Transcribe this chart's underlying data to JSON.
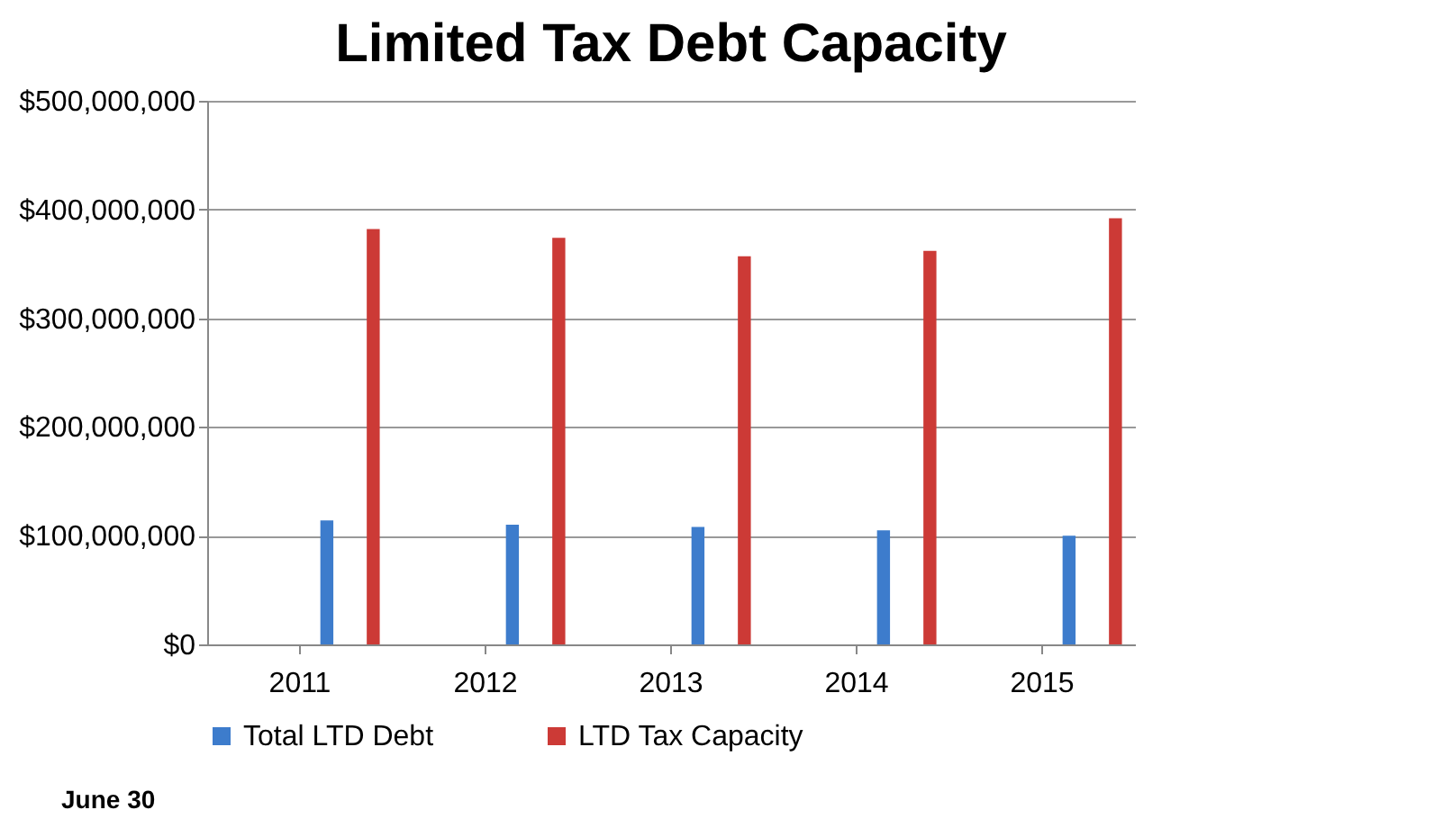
{
  "chart_data": {
    "type": "bar",
    "title": "Limited Tax Debt Capacity",
    "categories": [
      "2011",
      "2012",
      "2013",
      "2014",
      "2015"
    ],
    "series": [
      {
        "name": "Total LTD Debt",
        "color": "#3d7ccc",
        "values": [
          114000000,
          110000000,
          108000000,
          105000000,
          100000000
        ]
      },
      {
        "name": "LTD Tax Capacity",
        "color": "#cc3a36",
        "values": [
          382000000,
          374000000,
          357000000,
          362000000,
          392000000
        ]
      }
    ],
    "ylim": [
      0,
      500000000
    ],
    "yticks": [
      {
        "value": 0,
        "label": "$0"
      },
      {
        "value": 100000000,
        "label": "$100,000,000"
      },
      {
        "value": 200000000,
        "label": "$200,000,000"
      },
      {
        "value": 300000000,
        "label": "$300,000,000"
      },
      {
        "value": 400000000,
        "label": "$400,000,000"
      },
      {
        "value": 500000000,
        "label": "$500,000,000"
      }
    ],
    "grid": "y",
    "legend": "bottom",
    "annotations": [
      "June 30"
    ]
  }
}
